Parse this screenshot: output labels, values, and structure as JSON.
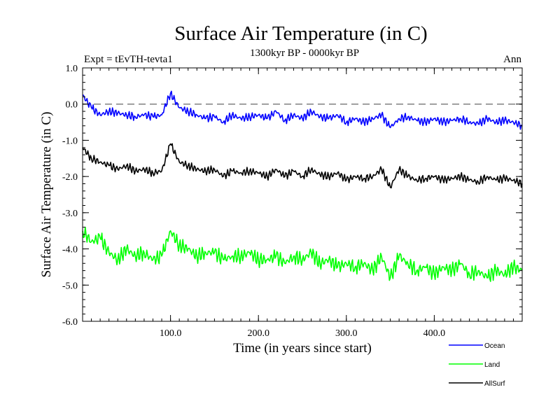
{
  "chart_data": {
    "type": "line",
    "title": "Surface Air Temperature (in C)",
    "subtitle": "1300kyr BP - 0000kyr BP",
    "experiment_label": "Expt = tEvTH-tevta1",
    "season_label": "Ann",
    "xlabel": "Time (in years since start)",
    "ylabel": "Surface Air Temperature (in C)",
    "xlim": [
      0,
      500
    ],
    "ylim": [
      -6.0,
      1.0
    ],
    "x_ticks": [
      100,
      200,
      300,
      400
    ],
    "x_tick_labels": [
      "100.0",
      "200.0",
      "300.0",
      "400.0"
    ],
    "y_ticks": [
      1.0,
      0.0,
      -1.0,
      -2.0,
      -3.0,
      -4.0,
      -5.0,
      -6.0
    ],
    "y_tick_labels": [
      "1.0",
      "0.0",
      "-1.0",
      "-2.0",
      "-3.0",
      "-4.0",
      "-5.0",
      "-6.0"
    ],
    "reference_line": {
      "y": 0.0,
      "style": "dashed",
      "color": "#808080"
    },
    "legend_placement": "bottom-right, outside plot",
    "series": [
      {
        "name": "Ocean",
        "color": "#0000ff",
        "x": [
          0,
          10,
          20,
          30,
          40,
          50,
          60,
          70,
          80,
          90,
          100,
          110,
          120,
          130,
          140,
          150,
          160,
          170,
          180,
          190,
          200,
          210,
          220,
          230,
          240,
          250,
          260,
          270,
          280,
          290,
          300,
          310,
          320,
          330,
          340,
          350,
          360,
          370,
          380,
          390,
          400,
          410,
          420,
          430,
          440,
          450,
          460,
          470,
          480,
          490,
          500
        ],
        "values": [
          0.25,
          -0.1,
          -0.3,
          -0.2,
          -0.25,
          -0.3,
          -0.35,
          -0.3,
          -0.35,
          -0.3,
          0.3,
          -0.1,
          -0.2,
          -0.3,
          -0.4,
          -0.35,
          -0.5,
          -0.3,
          -0.4,
          -0.35,
          -0.3,
          -0.4,
          -0.2,
          -0.45,
          -0.3,
          -0.4,
          -0.2,
          -0.35,
          -0.4,
          -0.3,
          -0.5,
          -0.4,
          -0.5,
          -0.4,
          -0.3,
          -0.65,
          -0.4,
          -0.35,
          -0.45,
          -0.5,
          -0.4,
          -0.5,
          -0.45,
          -0.4,
          -0.5,
          -0.55,
          -0.4,
          -0.5,
          -0.45,
          -0.5,
          -0.6
        ]
      },
      {
        "name": "Land",
        "color": "#00ff00",
        "x": [
          0,
          10,
          20,
          30,
          40,
          50,
          60,
          70,
          80,
          90,
          100,
          110,
          120,
          130,
          140,
          150,
          160,
          170,
          180,
          190,
          200,
          210,
          220,
          230,
          240,
          250,
          260,
          270,
          280,
          290,
          300,
          310,
          320,
          330,
          340,
          350,
          360,
          370,
          380,
          390,
          400,
          410,
          420,
          430,
          440,
          450,
          460,
          470,
          480,
          490,
          500
        ],
        "values": [
          -3.5,
          -3.8,
          -3.7,
          -4.1,
          -4.3,
          -4.0,
          -4.2,
          -4.1,
          -4.3,
          -4.2,
          -3.5,
          -3.9,
          -4.0,
          -4.2,
          -4.1,
          -4.1,
          -4.3,
          -4.2,
          -4.2,
          -4.1,
          -4.3,
          -4.3,
          -4.2,
          -4.4,
          -4.2,
          -4.3,
          -4.1,
          -4.4,
          -4.3,
          -4.5,
          -4.4,
          -4.5,
          -4.4,
          -4.6,
          -4.2,
          -4.8,
          -4.2,
          -4.4,
          -4.6,
          -4.5,
          -4.7,
          -4.5,
          -4.6,
          -4.4,
          -4.7,
          -4.6,
          -4.8,
          -4.6,
          -4.7,
          -4.5,
          -4.6
        ]
      },
      {
        "name": "AllSurf",
        "color": "#000000",
        "x": [
          0,
          10,
          20,
          30,
          40,
          50,
          60,
          70,
          80,
          90,
          100,
          110,
          120,
          130,
          140,
          150,
          160,
          170,
          180,
          190,
          200,
          210,
          220,
          230,
          240,
          250,
          260,
          270,
          280,
          290,
          300,
          310,
          320,
          330,
          340,
          350,
          360,
          370,
          380,
          390,
          400,
          410,
          420,
          430,
          440,
          450,
          460,
          470,
          480,
          490,
          500
        ],
        "values": [
          -1.2,
          -1.5,
          -1.6,
          -1.7,
          -1.8,
          -1.7,
          -1.85,
          -1.8,
          -1.9,
          -1.85,
          -1.1,
          -1.6,
          -1.7,
          -1.8,
          -1.85,
          -1.8,
          -2.0,
          -1.85,
          -1.9,
          -1.85,
          -1.9,
          -2.0,
          -1.8,
          -2.0,
          -1.85,
          -2.0,
          -1.8,
          -1.95,
          -2.0,
          -1.9,
          -2.1,
          -2.0,
          -2.05,
          -2.0,
          -1.8,
          -2.3,
          -1.8,
          -2.0,
          -2.1,
          -2.05,
          -2.0,
          -2.1,
          -2.05,
          -2.0,
          -2.1,
          -2.15,
          -2.0,
          -2.1,
          -2.05,
          -2.1,
          -2.2
        ]
      }
    ]
  }
}
